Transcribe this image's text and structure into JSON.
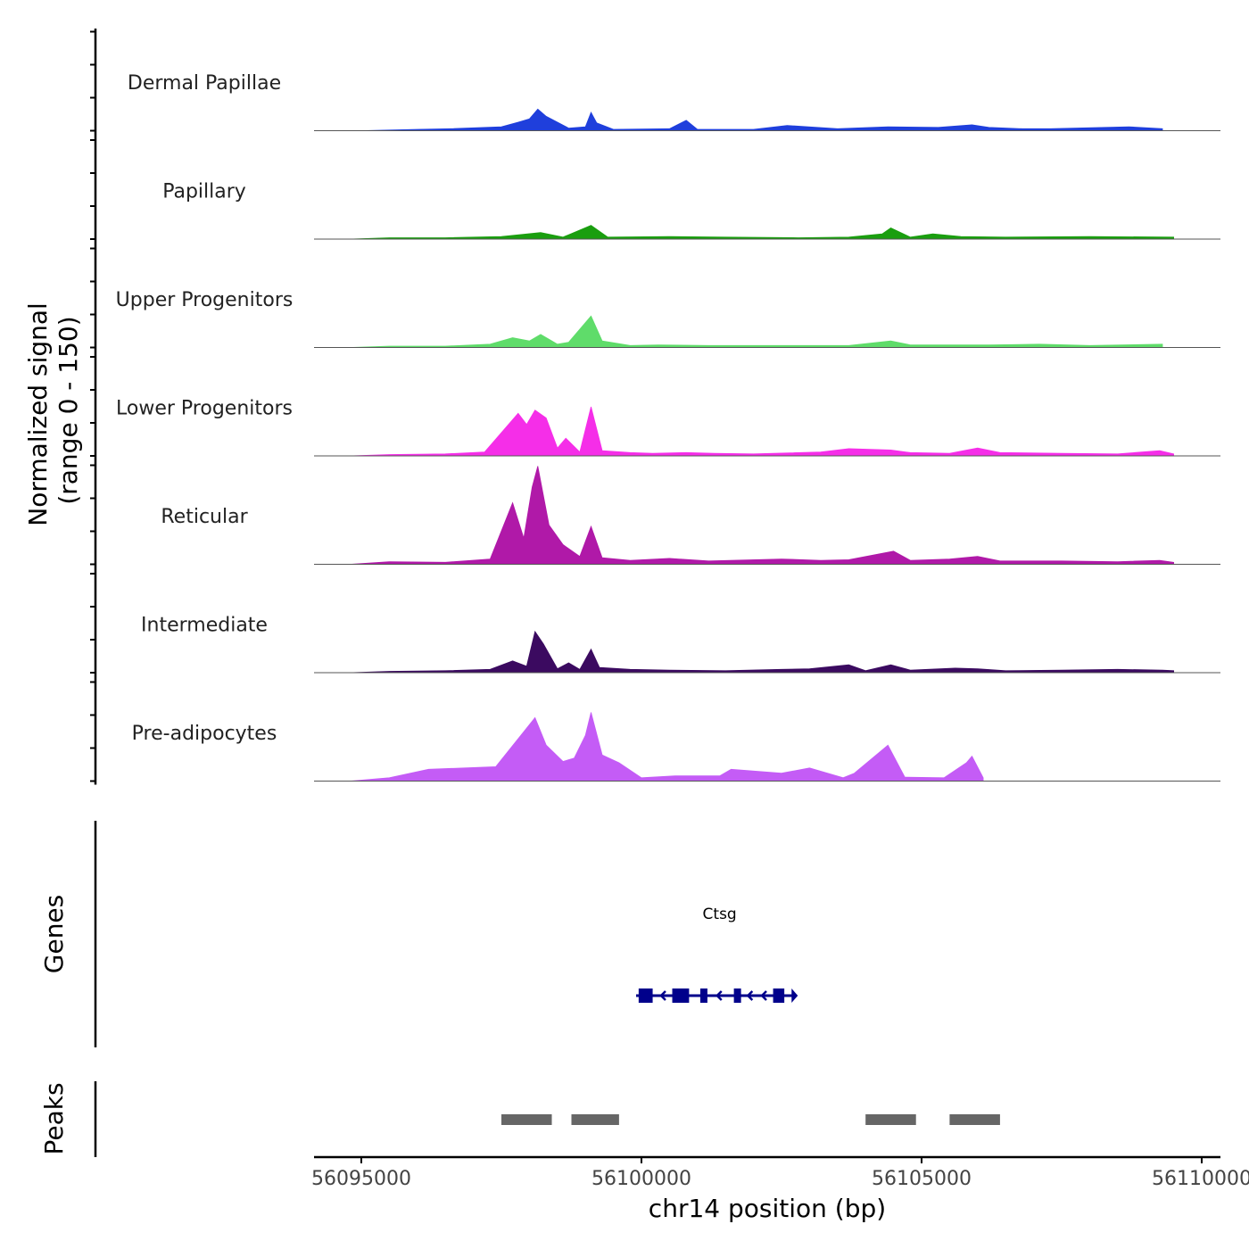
{
  "chart_data": {
    "type": "area",
    "chromosome": "chr14",
    "region": [
      56094000,
      56110200
    ],
    "xlabel": "chr14 position (bp)",
    "x_ticks": [
      56095000,
      56100000,
      56105000,
      56110000
    ],
    "x_tick_labels": [
      "56095000",
      "56100000",
      "56105000",
      "56110000"
    ],
    "signal_ylabel": [
      "Normalized signal",
      "(range 0 - 150)"
    ],
    "signal_range": [
      0,
      150
    ],
    "genes_label": "Genes",
    "peaks_label": "Peaks",
    "series": [
      {
        "name": "Dermal Papillae",
        "color": "#1f3fdc",
        "points": [
          [
            56095000,
            0
          ],
          [
            56096000,
            2
          ],
          [
            56096600,
            3
          ],
          [
            56097500,
            6
          ],
          [
            56097800,
            13
          ],
          [
            56098000,
            18
          ],
          [
            56098150,
            33
          ],
          [
            56098300,
            22
          ],
          [
            56098700,
            4
          ],
          [
            56099000,
            6
          ],
          [
            56099100,
            28
          ],
          [
            56099200,
            12
          ],
          [
            56099500,
            2
          ],
          [
            56100500,
            3
          ],
          [
            56100800,
            16
          ],
          [
            56101000,
            2
          ],
          [
            56102000,
            2
          ],
          [
            56102600,
            8
          ],
          [
            56103500,
            3
          ],
          [
            56104400,
            6
          ],
          [
            56105300,
            5
          ],
          [
            56105900,
            9
          ],
          [
            56106200,
            5
          ],
          [
            56106800,
            3
          ],
          [
            56107300,
            3
          ],
          [
            56108700,
            6
          ],
          [
            56109300,
            3
          ]
        ]
      },
      {
        "name": "Papillary",
        "color": "#1a9e0f",
        "points": [
          [
            56094800,
            0
          ],
          [
            56095500,
            2
          ],
          [
            56096500,
            2
          ],
          [
            56097500,
            4
          ],
          [
            56098200,
            10
          ],
          [
            56098600,
            3
          ],
          [
            56099100,
            21
          ],
          [
            56099400,
            3
          ],
          [
            56100500,
            4
          ],
          [
            56101500,
            3
          ],
          [
            56102800,
            2
          ],
          [
            56103700,
            3
          ],
          [
            56104300,
            8
          ],
          [
            56104450,
            17
          ],
          [
            56104800,
            3
          ],
          [
            56105200,
            8
          ],
          [
            56105700,
            4
          ],
          [
            56106500,
            3
          ],
          [
            56108000,
            4
          ],
          [
            56109500,
            3
          ]
        ]
      },
      {
        "name": "Upper Progenitors",
        "color": "#5fdc6a",
        "points": [
          [
            56094800,
            0
          ],
          [
            56095500,
            2
          ],
          [
            56096500,
            2
          ],
          [
            56097300,
            5
          ],
          [
            56097700,
            15
          ],
          [
            56098000,
            10
          ],
          [
            56098200,
            20
          ],
          [
            56098500,
            5
          ],
          [
            56098700,
            8
          ],
          [
            56099100,
            48
          ],
          [
            56099300,
            10
          ],
          [
            56099800,
            3
          ],
          [
            56100300,
            4
          ],
          [
            56101200,
            3
          ],
          [
            56102500,
            3
          ],
          [
            56103700,
            3
          ],
          [
            56104450,
            10
          ],
          [
            56104800,
            4
          ],
          [
            56106200,
            4
          ],
          [
            56107100,
            5
          ],
          [
            56108000,
            3
          ],
          [
            56109300,
            5
          ]
        ]
      },
      {
        "name": "Lower Progenitors",
        "color": "#f52ee8",
        "points": [
          [
            56094800,
            0
          ],
          [
            56095500,
            2
          ],
          [
            56096500,
            3
          ],
          [
            56097200,
            6
          ],
          [
            56097800,
            65
          ],
          [
            56097950,
            48
          ],
          [
            56098100,
            70
          ],
          [
            56098300,
            58
          ],
          [
            56098500,
            12
          ],
          [
            56098650,
            27
          ],
          [
            56098900,
            6
          ],
          [
            56099100,
            75
          ],
          [
            56099300,
            8
          ],
          [
            56099800,
            5
          ],
          [
            56100200,
            4
          ],
          [
            56100800,
            5
          ],
          [
            56101300,
            4
          ],
          [
            56102000,
            3
          ],
          [
            56103200,
            6
          ],
          [
            56103700,
            11
          ],
          [
            56104450,
            9
          ],
          [
            56104800,
            5
          ],
          [
            56105500,
            4
          ],
          [
            56106000,
            12
          ],
          [
            56106400,
            5
          ],
          [
            56107500,
            4
          ],
          [
            56108500,
            3
          ],
          [
            56109250,
            8
          ],
          [
            56109500,
            3
          ]
        ]
      },
      {
        "name": "Reticular",
        "color": "#b019a8",
        "points": [
          [
            56094800,
            0
          ],
          [
            56095500,
            4
          ],
          [
            56096500,
            3
          ],
          [
            56097300,
            8
          ],
          [
            56097700,
            94
          ],
          [
            56097900,
            40
          ],
          [
            56098050,
            118
          ],
          [
            56098150,
            150
          ],
          [
            56098350,
            60
          ],
          [
            56098600,
            30
          ],
          [
            56098900,
            12
          ],
          [
            56099100,
            58
          ],
          [
            56099300,
            10
          ],
          [
            56099800,
            6
          ],
          [
            56100500,
            9
          ],
          [
            56101200,
            5
          ],
          [
            56102500,
            8
          ],
          [
            56103200,
            6
          ],
          [
            56103700,
            7
          ],
          [
            56104500,
            20
          ],
          [
            56104800,
            6
          ],
          [
            56105500,
            8
          ],
          [
            56106000,
            12
          ],
          [
            56106400,
            5
          ],
          [
            56107500,
            5
          ],
          [
            56108500,
            4
          ],
          [
            56109250,
            6
          ],
          [
            56109500,
            3
          ]
        ]
      },
      {
        "name": "Intermediate",
        "color": "#3b0a60",
        "points": [
          [
            56094800,
            0
          ],
          [
            56095500,
            2
          ],
          [
            56096500,
            3
          ],
          [
            56097300,
            5
          ],
          [
            56097700,
            18
          ],
          [
            56097950,
            10
          ],
          [
            56098100,
            63
          ],
          [
            56098250,
            44
          ],
          [
            56098500,
            6
          ],
          [
            56098700,
            15
          ],
          [
            56098900,
            5
          ],
          [
            56099100,
            36
          ],
          [
            56099250,
            8
          ],
          [
            56099800,
            5
          ],
          [
            56100500,
            4
          ],
          [
            56101500,
            3
          ],
          [
            56102500,
            5
          ],
          [
            56103000,
            6
          ],
          [
            56103700,
            12
          ],
          [
            56104000,
            3
          ],
          [
            56104450,
            12
          ],
          [
            56104800,
            4
          ],
          [
            56105600,
            7
          ],
          [
            56106000,
            6
          ],
          [
            56106500,
            3
          ],
          [
            56107500,
            4
          ],
          [
            56108500,
            5
          ],
          [
            56109300,
            4
          ],
          [
            56109500,
            3
          ]
        ]
      },
      {
        "name": "Pre-adipocytes",
        "color": "#c45cf6",
        "points": [
          [
            56094800,
            0
          ],
          [
            56095500,
            5
          ],
          [
            56096200,
            18
          ],
          [
            56097400,
            22
          ],
          [
            56098100,
            97
          ],
          [
            56098300,
            55
          ],
          [
            56098600,
            30
          ],
          [
            56098800,
            35
          ],
          [
            56099000,
            70
          ],
          [
            56099100,
            105
          ],
          [
            56099300,
            40
          ],
          [
            56099600,
            28
          ],
          [
            56100000,
            5
          ],
          [
            56100600,
            8
          ],
          [
            56101400,
            8
          ],
          [
            56101600,
            18
          ],
          [
            56102500,
            12
          ],
          [
            56103000,
            20
          ],
          [
            56103600,
            5
          ],
          [
            56103800,
            12
          ],
          [
            56104400,
            55
          ],
          [
            56104700,
            6
          ],
          [
            56105400,
            5
          ],
          [
            56105800,
            28
          ],
          [
            56105900,
            38
          ],
          [
            56106100,
            5
          ]
        ]
      }
    ],
    "genes": [
      {
        "name": "Ctsg",
        "start": 56100000,
        "end": 56102600,
        "strand": "-",
        "exons": [
          [
            56099950,
            56100200
          ],
          [
            56100550,
            56100850
          ],
          [
            56101050,
            56101150
          ],
          [
            56101650,
            56101750
          ],
          [
            56102350,
            56102550
          ]
        ]
      }
    ],
    "peaks": [
      [
        56097500,
        56098400
      ],
      [
        56098750,
        56099600
      ],
      [
        56104000,
        56104900
      ],
      [
        56105500,
        56106400
      ]
    ]
  }
}
